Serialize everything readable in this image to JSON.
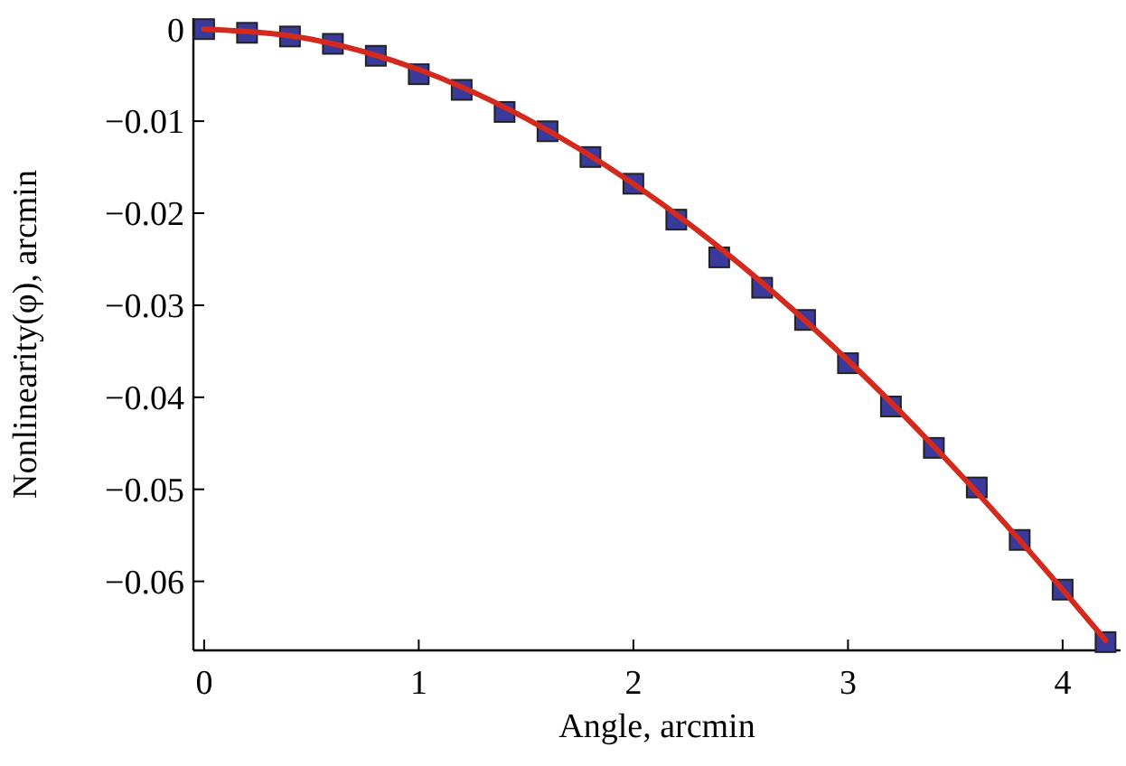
{
  "chart_data": {
    "type": "scatter",
    "xlabel": "Angle, arcmin",
    "ylabel": "Nonlinearity(φ), arcmin",
    "xlim": [
      -0.05,
      4.27
    ],
    "ylim": [
      -0.0675,
      0.0012
    ],
    "xticks": [
      0,
      1,
      2,
      3,
      4
    ],
    "yticks": [
      0,
      {
        "value": -0.01,
        "label": "−0.01"
      },
      {
        "value": -0.02,
        "label": "−0.02"
      },
      {
        "value": -0.03,
        "label": "−0.03"
      },
      {
        "value": -0.04,
        "label": "−0.04"
      },
      {
        "value": -0.05,
        "label": "−0.05"
      },
      {
        "value": -0.06,
        "label": "−0.06"
      }
    ],
    "grid": false,
    "series": [
      {
        "type": "line",
        "color": "#d42a1e",
        "marker": "none",
        "line_style": "solid",
        "x": [
          0,
          0.5,
          1,
          1.5,
          2,
          2.5,
          3,
          3.5,
          4,
          4.2
        ],
        "values": [
          0,
          -0.0011,
          -0.0044,
          -0.0097,
          -0.0168,
          -0.0256,
          -0.036,
          -0.0478,
          -0.0609,
          -0.0664
        ]
      },
      {
        "color": "#3a3a9a",
        "marker": "square",
        "x": [
          0,
          0.2,
          0.4,
          0.6,
          0.8,
          1,
          1.2,
          1.4,
          1.6,
          1.8,
          2,
          2.2,
          2.4,
          2.6,
          2.8,
          3,
          3.2,
          3.4,
          3.6,
          3.8,
          4,
          4.2
        ],
        "values": [
          0,
          -0.0004,
          -0.0008,
          -0.0016,
          -0.0029,
          -0.0049,
          -0.0066,
          -0.009,
          -0.0111,
          -0.0139,
          -0.0168,
          -0.0207,
          -0.0248,
          -0.0281,
          -0.0316,
          -0.0363,
          -0.041,
          -0.0455,
          -0.0498,
          -0.0555,
          -0.0609,
          -0.0666
        ]
      }
    ]
  }
}
